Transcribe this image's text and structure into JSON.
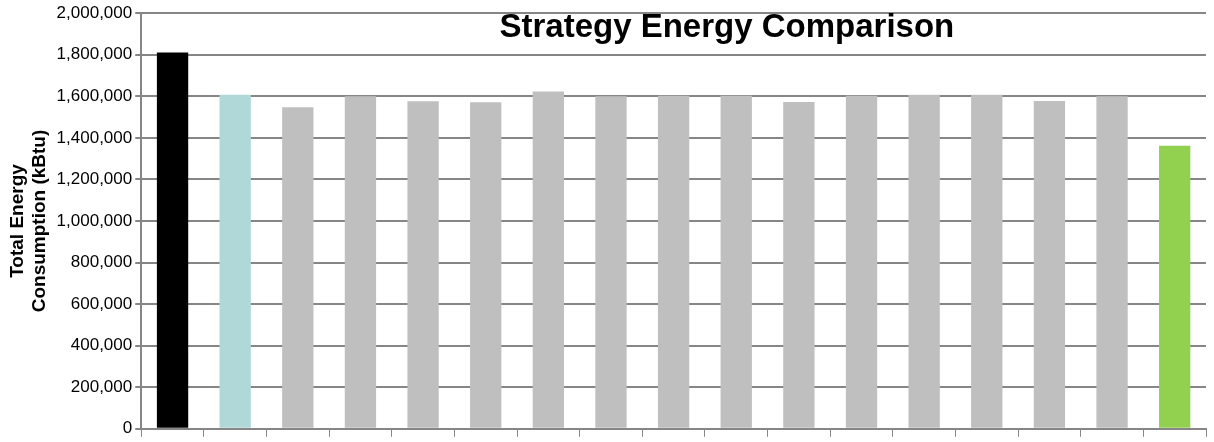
{
  "chart_data": {
    "type": "bar",
    "title": "Strategy Energy Comparison",
    "ylabel": "Total Energy\nConsumption (kBtu)",
    "categories": [
      null,
      null,
      null,
      null,
      null,
      null,
      null,
      null,
      null,
      null,
      null,
      null,
      null,
      null,
      null,
      null,
      null
    ],
    "values": [
      1811000,
      1608000,
      1547000,
      1600000,
      1576000,
      1571000,
      1623000,
      1600000,
      1603000,
      1603000,
      1573000,
      1603000,
      1608000,
      1608000,
      1578000,
      1600000,
      1362000
    ],
    "colors": [
      "#000000",
      "#b0d8d8",
      "#bfbfbf",
      "#bfbfbf",
      "#bfbfbf",
      "#bfbfbf",
      "#bfbfbf",
      "#bfbfbf",
      "#bfbfbf",
      "#bfbfbf",
      "#bfbfbf",
      "#bfbfbf",
      "#bfbfbf",
      "#bfbfbf",
      "#bfbfbf",
      "#bfbfbf",
      "#92d050"
    ],
    "ylim": [
      0,
      2000000
    ],
    "yticks": [
      0,
      {
        "value": 200000,
        "label": "200,000"
      },
      {
        "value": 400000,
        "label": "400,000"
      },
      {
        "value": 600000,
        "label": "600,000"
      },
      {
        "value": 800000,
        "label": "800,000"
      },
      {
        "value": 1000000,
        "label": "1,000,000"
      },
      {
        "value": 1200000,
        "label": "1,200,000"
      },
      {
        "value": 1400000,
        "label": "1,400,000"
      },
      {
        "value": 1600000,
        "label": "1,600,000"
      },
      {
        "value": 1800000,
        "label": "1,800,000"
      },
      {
        "value": 2000000,
        "label": "2,000,000"
      }
    ],
    "grid": "y",
    "legend": false
  }
}
